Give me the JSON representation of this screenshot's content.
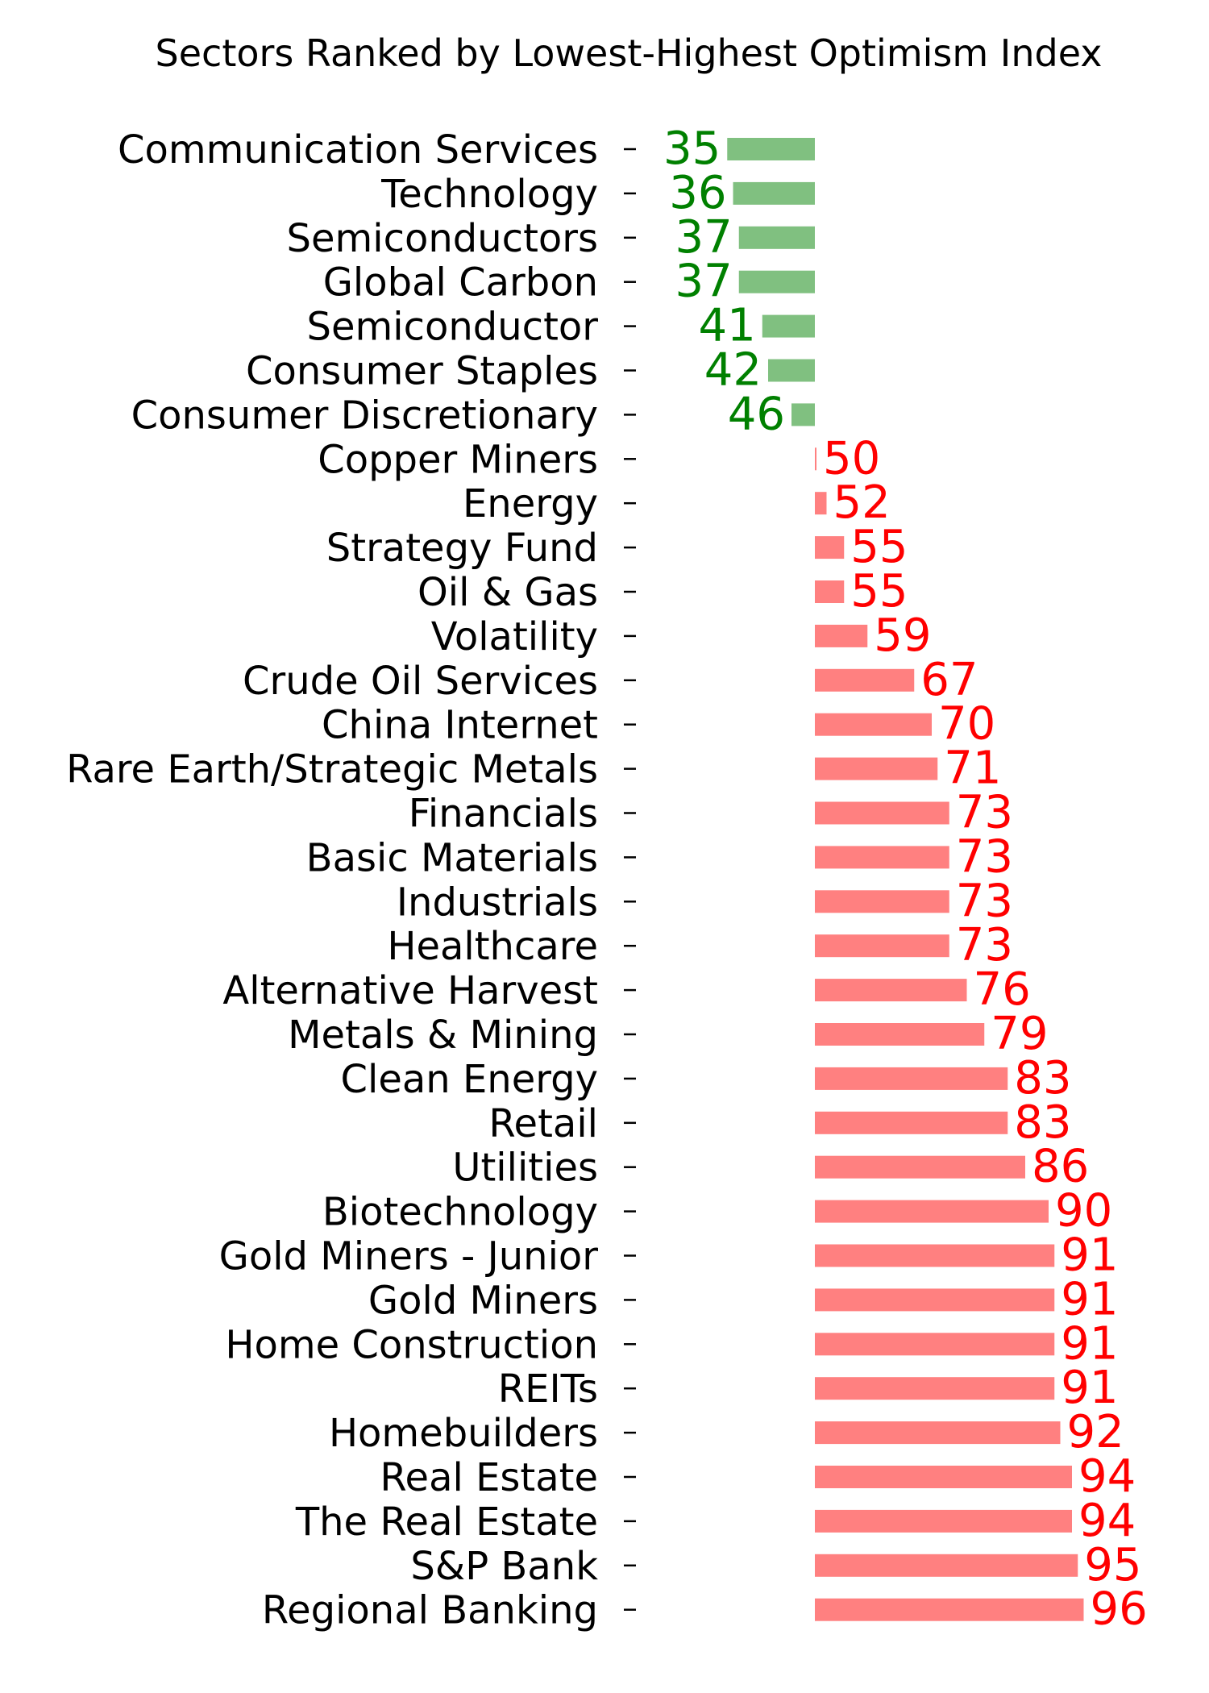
{
  "chart_data": {
    "type": "bar",
    "orientation": "horizontal",
    "title": "Sectors Ranked by Lowest-Highest Optimism Index",
    "xlabel": "",
    "ylabel": "",
    "baseline": 50,
    "xlim": [
      30,
      100
    ],
    "grid": false,
    "colors": {
      "below": "#80c080",
      "above": "#ff8080",
      "below_text": "#008000",
      "above_text": "#ff0000"
    },
    "categories": [
      "Communication Services",
      "Technology",
      "Semiconductors",
      "Global Carbon",
      "Semiconductor",
      "Consumer Staples",
      "Consumer Discretionary",
      "Copper Miners",
      "Energy",
      "Strategy Fund",
      "Oil & Gas",
      "Volatility",
      "Crude Oil Services",
      "China Internet",
      "Rare Earth/Strategic Metals",
      "Financials",
      "Basic Materials",
      "Industrials",
      "Healthcare",
      "Alternative Harvest",
      "Metals & Mining",
      "Clean Energy",
      "Retail",
      "Utilities",
      "Biotechnology",
      "Gold Miners - Junior",
      "Gold Miners",
      "Home Construction",
      "REITs",
      "Homebuilders",
      "Real Estate",
      "The Real Estate",
      "S&P Bank",
      "Regional Banking"
    ],
    "values": [
      35,
      36,
      37,
      37,
      41,
      42,
      46,
      50,
      52,
      55,
      55,
      59,
      67,
      70,
      71,
      73,
      73,
      73,
      73,
      76,
      79,
      83,
      83,
      86,
      90,
      91,
      91,
      91,
      91,
      92,
      94,
      94,
      95,
      96
    ]
  }
}
